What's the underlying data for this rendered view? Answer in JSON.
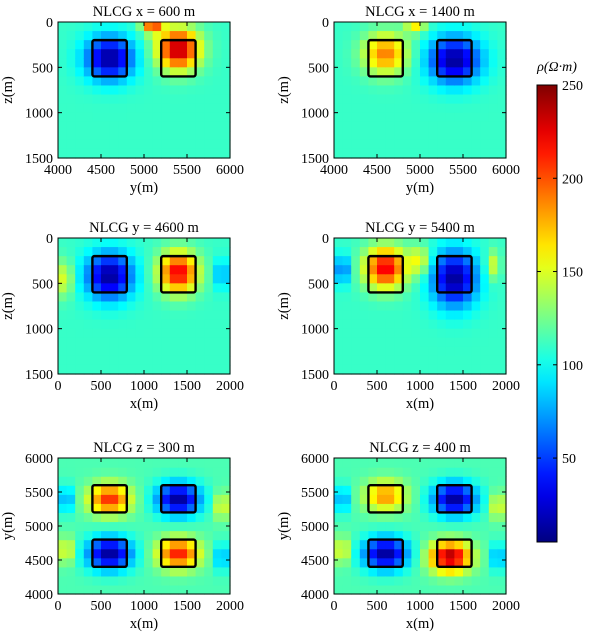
{
  "colorbar": {
    "label": "ρ(Ω·m)",
    "min": 5,
    "max": 250,
    "ticks": [
      50,
      100,
      150,
      200,
      250
    ],
    "colormap": "jet"
  },
  "chart_data": [
    {
      "type": "heatmap",
      "title": "NLCG x = 600 m",
      "xlabel": "y(m)",
      "ylabel": "z(m)",
      "xlim": [
        4000,
        6000
      ],
      "ylim": [
        0,
        1500
      ],
      "y_reversed": true,
      "xticks": [
        4000,
        4500,
        5000,
        5500,
        6000
      ],
      "yticks": [
        0,
        500,
        1000,
        1500
      ],
      "background": 110,
      "blobs": [
        {
          "cx": 4600,
          "cy": 400,
          "rx": 350,
          "ry": 300,
          "value": 10,
          "note": "conductive anomaly"
        },
        {
          "cx": 5400,
          "cy": 300,
          "rx": 300,
          "ry": 280,
          "value": 240,
          "note": "resistive anomaly"
        },
        {
          "cx": 5100,
          "cy": 50,
          "rx": 150,
          "ry": 100,
          "value": 200
        }
      ],
      "boxes": [
        {
          "x0": 4400,
          "x1": 4800,
          "y0": 200,
          "y1": 600
        },
        {
          "x0": 5200,
          "x1": 5600,
          "y0": 200,
          "y1": 600
        }
      ]
    },
    {
      "type": "heatmap",
      "title": "NLCG x = 1400 m",
      "xlabel": "y(m)",
      "ylabel": "z(m)",
      "xlim": [
        4000,
        6000
      ],
      "ylim": [
        0,
        1500
      ],
      "y_reversed": true,
      "xticks": [
        4000,
        4500,
        5000,
        5500,
        6000
      ],
      "yticks": [
        0,
        500,
        1000,
        1500
      ],
      "background": 110,
      "blobs": [
        {
          "cx": 4600,
          "cy": 350,
          "rx": 320,
          "ry": 280,
          "value": 190,
          "note": "resistive anomaly"
        },
        {
          "cx": 5400,
          "cy": 420,
          "rx": 380,
          "ry": 320,
          "value": 10,
          "note": "conductive anomaly"
        },
        {
          "cx": 4950,
          "cy": 50,
          "rx": 150,
          "ry": 100,
          "value": 160
        }
      ],
      "boxes": [
        {
          "x0": 4400,
          "x1": 4800,
          "y0": 200,
          "y1": 600
        },
        {
          "x0": 5200,
          "x1": 5600,
          "y0": 200,
          "y1": 600
        }
      ]
    },
    {
      "type": "heatmap",
      "title": "NLCG y = 4600 m",
      "xlabel": "x(m)",
      "ylabel": "z(m)",
      "xlim": [
        0,
        2000
      ],
      "ylim": [
        0,
        1500
      ],
      "y_reversed": true,
      "xticks": [
        0,
        500,
        1000,
        1500,
        2000
      ],
      "yticks": [
        0,
        500,
        1000,
        1500
      ],
      "background": 110,
      "blobs": [
        {
          "cx": 600,
          "cy": 420,
          "rx": 340,
          "ry": 320,
          "value": 10,
          "note": "conductive anomaly"
        },
        {
          "cx": 1400,
          "cy": 380,
          "rx": 280,
          "ry": 280,
          "value": 225,
          "note": "resistive anomaly"
        },
        {
          "cx": 80,
          "cy": 450,
          "rx": 110,
          "ry": 250,
          "value": 155
        },
        {
          "cx": 1900,
          "cy": 400,
          "rx": 100,
          "ry": 200,
          "value": 70
        }
      ],
      "boxes": [
        {
          "x0": 400,
          "x1": 800,
          "y0": 200,
          "y1": 600
        },
        {
          "x0": 1200,
          "x1": 1600,
          "y0": 200,
          "y1": 600
        }
      ]
    },
    {
      "type": "heatmap",
      "title": "NLCG y = 5400 m",
      "xlabel": "x(m)",
      "ylabel": "z(m)",
      "xlim": [
        0,
        2000
      ],
      "ylim": [
        0,
        1500
      ],
      "y_reversed": true,
      "xticks": [
        0,
        500,
        1000,
        1500,
        2000
      ],
      "yticks": [
        0,
        500,
        1000,
        1500
      ],
      "background": 110,
      "blobs": [
        {
          "cx": 600,
          "cy": 330,
          "rx": 300,
          "ry": 280,
          "value": 225,
          "note": "resistive anomaly"
        },
        {
          "cx": 1400,
          "cy": 450,
          "rx": 330,
          "ry": 380,
          "value": 10,
          "note": "conductive anomaly"
        },
        {
          "cx": 1000,
          "cy": 250,
          "rx": 150,
          "ry": 200,
          "value": 155
        },
        {
          "cx": 100,
          "cy": 350,
          "rx": 120,
          "ry": 200,
          "value": 60
        },
        {
          "cx": 1850,
          "cy": 300,
          "rx": 100,
          "ry": 200,
          "value": 150
        }
      ],
      "boxes": [
        {
          "x0": 400,
          "x1": 800,
          "y0": 200,
          "y1": 600
        },
        {
          "x0": 1200,
          "x1": 1600,
          "y0": 200,
          "y1": 600
        }
      ]
    },
    {
      "type": "heatmap",
      "title": "NLCG z = 300 m",
      "xlabel": "x(m)",
      "ylabel": "y(m)",
      "xlim": [
        0,
        2000
      ],
      "ylim": [
        4000,
        6000
      ],
      "y_reversed": false,
      "xticks": [
        0,
        500,
        1000,
        1500,
        2000
      ],
      "yticks": [
        4000,
        4500,
        5000,
        5500,
        6000
      ],
      "background": 115,
      "blobs": [
        {
          "cx": 600,
          "cy": 5400,
          "rx": 300,
          "ry": 280,
          "value": 210,
          "note": "resistive anomaly"
        },
        {
          "cx": 1400,
          "cy": 5400,
          "rx": 320,
          "ry": 300,
          "value": 10,
          "note": "conductive anomaly"
        },
        {
          "cx": 600,
          "cy": 4600,
          "rx": 330,
          "ry": 300,
          "value": 10,
          "note": "conductive anomaly"
        },
        {
          "cx": 1400,
          "cy": 4600,
          "rx": 300,
          "ry": 280,
          "value": 215,
          "note": "resistive anomaly"
        },
        {
          "cx": 1900,
          "cy": 5300,
          "rx": 100,
          "ry": 250,
          "value": 160
        },
        {
          "cx": 100,
          "cy": 4650,
          "rx": 110,
          "ry": 250,
          "value": 160
        },
        {
          "cx": 100,
          "cy": 5400,
          "rx": 110,
          "ry": 250,
          "value": 70
        },
        {
          "cx": 1900,
          "cy": 4550,
          "rx": 100,
          "ry": 250,
          "value": 70
        }
      ],
      "boxes": [
        {
          "x0": 400,
          "x1": 800,
          "y0": 5200,
          "y1": 5600
        },
        {
          "x0": 1200,
          "x1": 1600,
          "y0": 5200,
          "y1": 5600
        },
        {
          "x0": 400,
          "x1": 800,
          "y0": 4400,
          "y1": 4800
        },
        {
          "x0": 1200,
          "x1": 1600,
          "y0": 4400,
          "y1": 4800
        }
      ]
    },
    {
      "type": "heatmap",
      "title": "NLCG z = 400 m",
      "xlabel": "x(m)",
      "ylabel": "y(m)",
      "xlim": [
        0,
        2000
      ],
      "ylim": [
        4000,
        6000
      ],
      "y_reversed": false,
      "xticks": [
        0,
        500,
        1000,
        1500,
        2000
      ],
      "yticks": [
        4000,
        4500,
        5000,
        5500,
        6000
      ],
      "background": 115,
      "blobs": [
        {
          "cx": 600,
          "cy": 5450,
          "rx": 300,
          "ry": 280,
          "value": 185,
          "note": "resistive anomaly"
        },
        {
          "cx": 1400,
          "cy": 5400,
          "rx": 320,
          "ry": 300,
          "value": 10,
          "note": "conductive anomaly"
        },
        {
          "cx": 600,
          "cy": 4600,
          "rx": 330,
          "ry": 300,
          "value": 10,
          "note": "conductive anomaly"
        },
        {
          "cx": 1350,
          "cy": 4550,
          "rx": 300,
          "ry": 280,
          "value": 240,
          "note": "resistive anomaly"
        },
        {
          "cx": 1900,
          "cy": 5300,
          "rx": 100,
          "ry": 250,
          "value": 160
        },
        {
          "cx": 100,
          "cy": 4650,
          "rx": 110,
          "ry": 250,
          "value": 160
        },
        {
          "cx": 100,
          "cy": 5400,
          "rx": 110,
          "ry": 250,
          "value": 70
        },
        {
          "cx": 1900,
          "cy": 4550,
          "rx": 100,
          "ry": 250,
          "value": 70
        }
      ],
      "boxes": [
        {
          "x0": 400,
          "x1": 800,
          "y0": 5200,
          "y1": 5600
        },
        {
          "x0": 1200,
          "x1": 1600,
          "y0": 5200,
          "y1": 5600
        },
        {
          "x0": 400,
          "x1": 800,
          "y0": 4400,
          "y1": 4800
        },
        {
          "x0": 1200,
          "x1": 1600,
          "y0": 4400,
          "y1": 4800
        }
      ]
    }
  ]
}
